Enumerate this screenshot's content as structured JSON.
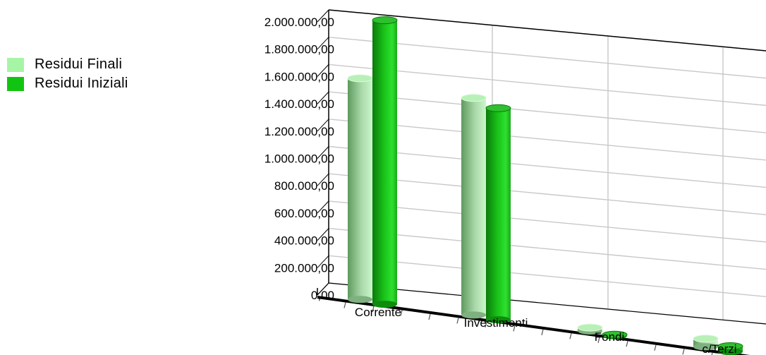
{
  "chart_data": {
    "type": "bar",
    "title": "",
    "xlabel": "",
    "ylabel": "",
    "categories": [
      "Corrente",
      "Investimenti",
      "Fondi",
      "c/Terzi"
    ],
    "series": [
      {
        "name": "Residui Finali",
        "color": "#a6f5a6",
        "values": [
          1620000,
          1590000,
          25000,
          60000
        ]
      },
      {
        "name": "Residui Iniziali",
        "color": "#12c412",
        "values": [
          2080000,
          1550000,
          8000,
          40000
        ]
      }
    ],
    "ylim": [
      0,
      2000000
    ],
    "yticks": [
      "0,00",
      "200.000,00",
      "400.000,00",
      "600.000,00",
      "800.000,00",
      "1.000.000,00",
      "1.200.000,00",
      "1.400.000,00",
      "1.600.000,00",
      "1.800.000,00",
      "2.000.000,00"
    ],
    "grid": true,
    "legend_position": "top-left",
    "style": "3d-cylinder"
  }
}
